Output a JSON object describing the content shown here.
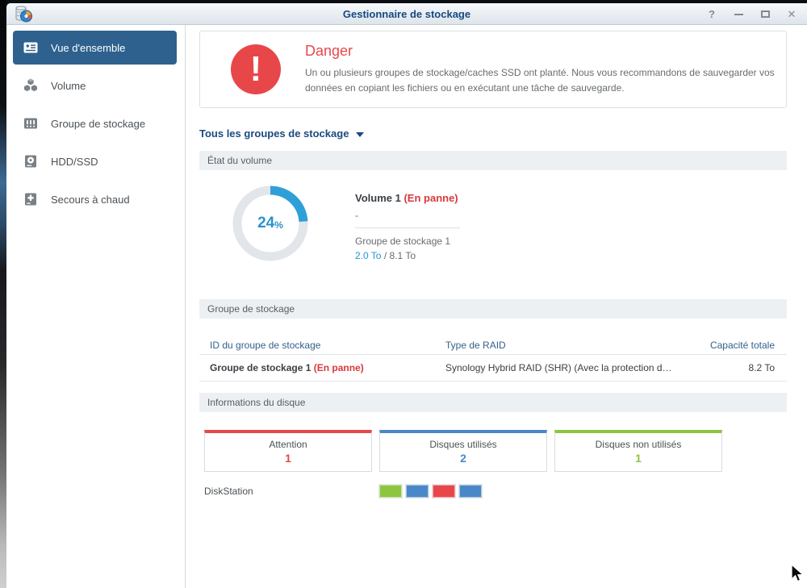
{
  "colors": {
    "accent_blue": "#2f9fd8",
    "donut_track": "#e2e5e9",
    "danger_red": "#e8474a",
    "disk_blue": "#4a87c7",
    "disk_green": "#8dc540",
    "selected_item_blue": "#2e618e"
  },
  "titlebar": {
    "title": "Gestionnaire de stockage",
    "help_glyph": "?",
    "close_glyph": "✕"
  },
  "sidebar": {
    "items": [
      {
        "label": "Vue d'ensemble",
        "selected": true
      },
      {
        "label": "Volume",
        "selected": false
      },
      {
        "label": "Groupe de stockage",
        "selected": false
      },
      {
        "label": "HDD/SSD",
        "selected": false
      },
      {
        "label": "Secours à chaud",
        "selected": false
      }
    ]
  },
  "alert": {
    "title": "Danger",
    "message": "Un ou plusieurs groupes de stockage/caches SSD ont planté. Nous vous recommandons de sauvegarder vos données en copiant les fichiers ou en exécutant une tâche de sauvegarde."
  },
  "filter": {
    "label": "Tous les groupes de stockage"
  },
  "volume_section": {
    "header": "État du volume",
    "donut": {
      "percent": 24,
      "percent_label": "24",
      "percent_suffix": "%"
    },
    "volume_name": "Volume 1",
    "volume_status": "(En panne)",
    "detail_dash": "-",
    "group_name": "Groupe de stockage 1",
    "used": "2.0 To",
    "separator": "/",
    "total": "8.1 To"
  },
  "storage_group_section": {
    "header": "Groupe de stockage",
    "columns": [
      "ID du groupe de stockage",
      "Type de RAID",
      "Capacité totale"
    ],
    "row": {
      "name": "Groupe de stockage 1",
      "status": "(En panne)",
      "raid_type": "Synology Hybrid RAID (SHR) (Avec la protection d…",
      "capacity": "8.2 To"
    }
  },
  "disk_section": {
    "header": "Informations du disque",
    "cards": [
      {
        "label": "Attention",
        "value": "1",
        "color": "#e8474a"
      },
      {
        "label": "Disques utilisés",
        "value": "2",
        "color": "#4a87c7"
      },
      {
        "label": "Disques non utilisés",
        "value": "1",
        "color": "#8dc540"
      }
    ],
    "host": {
      "name": "DiskStation",
      "disks": [
        "#8dc540",
        "#4a87c7",
        "#e8474a",
        "#4a87c7"
      ]
    }
  }
}
